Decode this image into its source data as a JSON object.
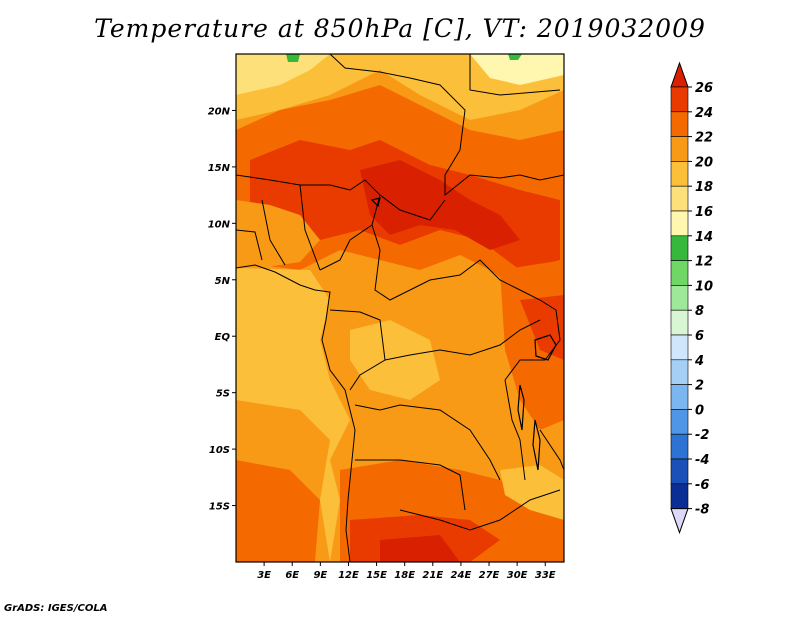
{
  "title": "Temperature at 850hPa [C], VT: 2019032009",
  "footer": "GrADS: IGES/COLA",
  "map": {
    "region": "Central Africa",
    "lon_range": [
      0,
      35
    ],
    "lat_range": [
      -20,
      25
    ],
    "x_ticks": [
      "3E",
      "6E",
      "9E",
      "12E",
      "15E",
      "18E",
      "21E",
      "24E",
      "27E",
      "30E",
      "33E"
    ],
    "y_ticks": [
      "20N",
      "15N",
      "10N",
      "5N",
      "EQ",
      "5S",
      "10S",
      "15S"
    ]
  },
  "colorbar": {
    "labels": [
      "26",
      "24",
      "22",
      "20",
      "18",
      "16",
      "14",
      "12",
      "10",
      "8",
      "6",
      "4",
      "2",
      "0",
      "-2",
      "-4",
      "-6",
      "-8"
    ],
    "colors": [
      "#d92000",
      "#e93b00",
      "#f46a00",
      "#f99a16",
      "#fbbf3a",
      "#fde07a",
      "#fff6b0",
      "#36b83c",
      "#6fd766",
      "#9ee89a",
      "#d8f5d4",
      "#cfe6fb",
      "#a6cff6",
      "#7cb6f0",
      "#4f97e6",
      "#2c73d4",
      "#1a50b8",
      "#0b2e95",
      "#091464",
      "#ddd8f7"
    ]
  }
}
